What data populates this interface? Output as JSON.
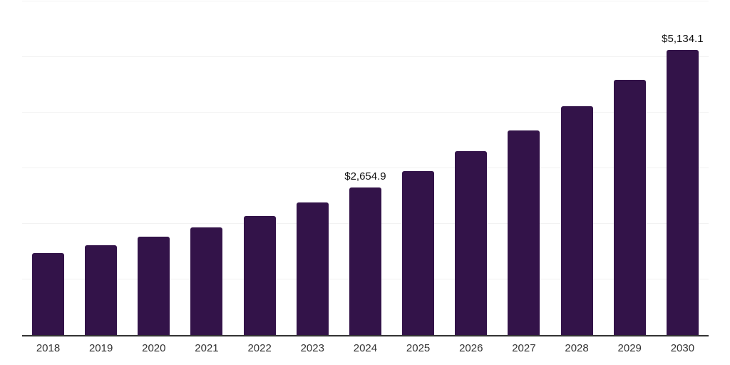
{
  "chart_data": {
    "type": "bar",
    "title": "",
    "xlabel": "",
    "ylabel": "",
    "categories": [
      "2018",
      "2019",
      "2020",
      "2021",
      "2022",
      "2023",
      "2024",
      "2025",
      "2026",
      "2027",
      "2028",
      "2029",
      "2030"
    ],
    "values": [
      1470,
      1615,
      1770,
      1935,
      2140,
      2385,
      2654.9,
      2950,
      3310,
      3680,
      4115,
      4585,
      5134.1
    ],
    "data_labels": [
      "",
      "",
      "",
      "",
      "",
      "",
      "$2,654.9",
      "",
      "",
      "",
      "",
      "",
      "$5,134.1"
    ],
    "ylim": [
      0,
      6000
    ],
    "gridline_interval": 1000,
    "grid_on": true,
    "legend_position": "none",
    "colors": {
      "bar": "#331349",
      "gridline": "#f2f2f2",
      "axis_line": "#333333",
      "tick_label": "#333333",
      "data_label": "#111111",
      "background": "#ffffff"
    }
  }
}
